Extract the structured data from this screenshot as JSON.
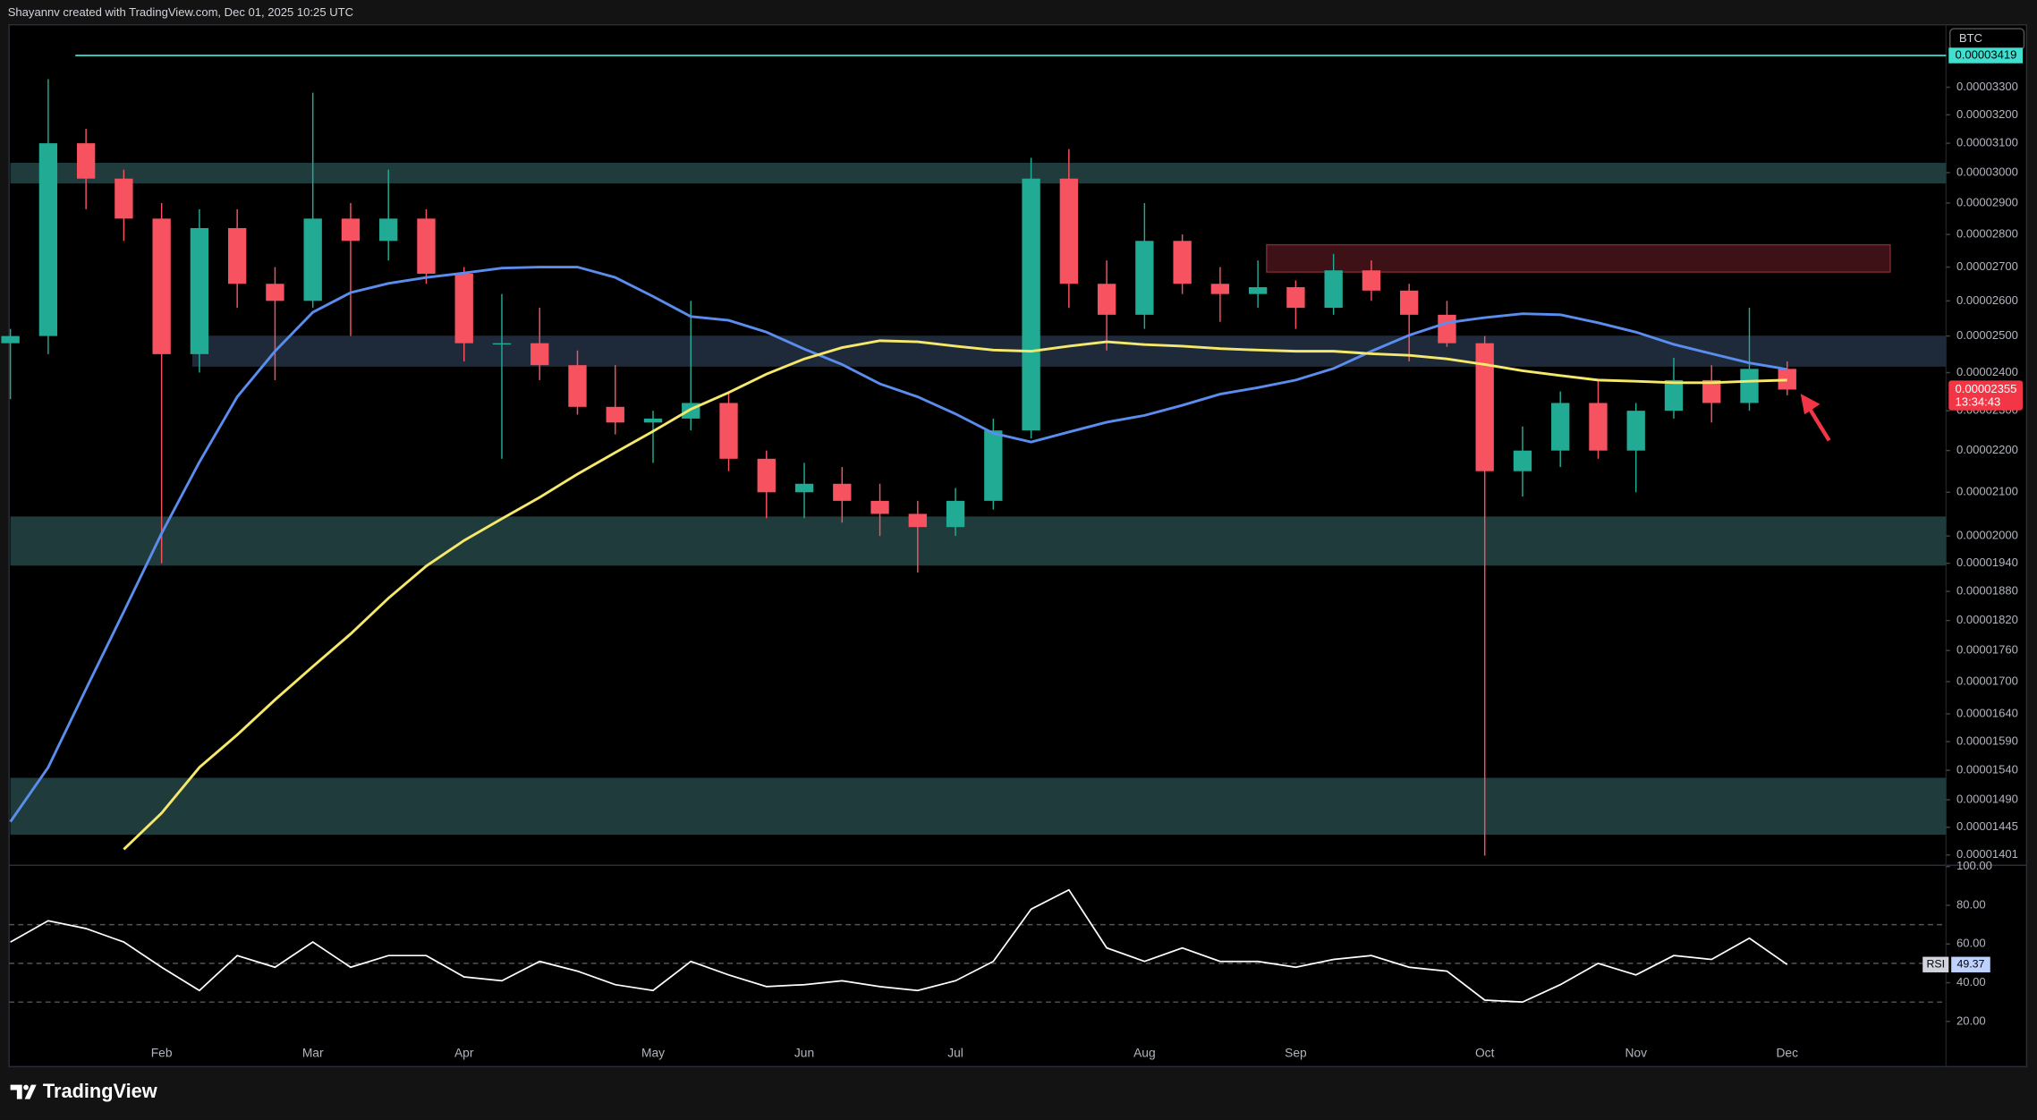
{
  "header": {
    "text": "Shayannv created with TradingView.com, Dec 01, 2025 10:25 UTC"
  },
  "footer": {
    "brand": "TradingView"
  },
  "chart_data": {
    "type": "candlestick",
    "symbol": "BTC",
    "yscale": "log",
    "ylim": [
      1.387e-05,
      3.533e-05
    ],
    "yticks": [
      {
        "value": 3.3e-05,
        "label": "0.00003300"
      },
      {
        "value": 3.2e-05,
        "label": "0.00003200"
      },
      {
        "value": 3.1e-05,
        "label": "0.00003100"
      },
      {
        "value": 3e-05,
        "label": "0.00003000"
      },
      {
        "value": 2.9e-05,
        "label": "0.00002900"
      },
      {
        "value": 2.8e-05,
        "label": "0.00002800"
      },
      {
        "value": 2.7e-05,
        "label": "0.00002700"
      },
      {
        "value": 2.6e-05,
        "label": "0.00002600"
      },
      {
        "value": 2.5e-05,
        "label": "0.00002500"
      },
      {
        "value": 2.4e-05,
        "label": "0.00002400"
      },
      {
        "value": 2.3e-05,
        "label": "0.00002300"
      },
      {
        "value": 2.2e-05,
        "label": "0.00002200"
      },
      {
        "value": 2.1e-05,
        "label": "0.00002100"
      },
      {
        "value": 2e-05,
        "label": "0.00002000"
      },
      {
        "value": 1.94e-05,
        "label": "0.00001940"
      },
      {
        "value": 1.88e-05,
        "label": "0.00001880"
      },
      {
        "value": 1.82e-05,
        "label": "0.00001820"
      },
      {
        "value": 1.76e-05,
        "label": "0.00001760"
      },
      {
        "value": 1.7e-05,
        "label": "0.00001700"
      },
      {
        "value": 1.64e-05,
        "label": "0.00001640"
      },
      {
        "value": 1.59e-05,
        "label": "0.00001590"
      },
      {
        "value": 1.54e-05,
        "label": "0.00001540"
      },
      {
        "value": 1.49e-05,
        "label": "0.00001490"
      },
      1.445e-05,
      1.401e-05
    ],
    "categories": [
      null,
      null,
      null,
      null,
      "Feb",
      null,
      null,
      null,
      "Mar",
      null,
      null,
      null,
      "Apr",
      null,
      null,
      null,
      null,
      "May",
      null,
      null,
      null,
      "Jun",
      null,
      null,
      null,
      "Jul",
      null,
      null,
      null,
      null,
      "Aug",
      null,
      null,
      null,
      "Sep",
      null,
      null,
      null,
      null,
      "Oct",
      null,
      null,
      null,
      "Nov",
      null,
      null,
      null,
      "Dec"
    ],
    "up_color": "#22ab94",
    "down_color": "#f7525f",
    "open": [
      2.48e-05,
      2.5e-05,
      3.1e-05,
      2.98e-05,
      2.85e-05,
      2.45e-05,
      2.82e-05,
      2.65e-05,
      2.6e-05,
      2.85e-05,
      2.78e-05,
      2.85e-05,
      2.68e-05,
      2.48e-05,
      2.48e-05,
      2.42e-05,
      2.31e-05,
      2.27e-05,
      2.28e-05,
      2.32e-05,
      2.18e-05,
      2.1e-05,
      2.12e-05,
      2.08e-05,
      2.05e-05,
      2.02e-05,
      2.08e-05,
      2.25e-05,
      2.98e-05,
      2.65e-05,
      2.56e-05,
      2.78e-05,
      2.65e-05,
      2.62e-05,
      2.64e-05,
      2.58e-05,
      2.69e-05,
      2.63e-05,
      2.56e-05,
      2.48e-05,
      2.15e-05,
      2.2e-05,
      2.32e-05,
      2.2e-05,
      2.3e-05,
      2.38e-05,
      2.32e-05,
      2.41e-05
    ],
    "high": [
      2.52e-05,
      3.33e-05,
      3.15e-05,
      3.01e-05,
      2.9e-05,
      2.88e-05,
      2.88e-05,
      2.7e-05,
      3.28e-05,
      2.9e-05,
      3.01e-05,
      2.88e-05,
      2.7e-05,
      2.62e-05,
      2.58e-05,
      2.46e-05,
      2.42e-05,
      2.3e-05,
      2.6e-05,
      2.35e-05,
      2.2e-05,
      2.17e-05,
      2.16e-05,
      2.12e-05,
      2.08e-05,
      2.11e-05,
      2.28e-05,
      3.05e-05,
      3.08e-05,
      2.72e-05,
      2.9e-05,
      2.8e-05,
      2.7e-05,
      2.72e-05,
      2.66e-05,
      2.74e-05,
      2.72e-05,
      2.65e-05,
      2.6e-05,
      2.5e-05,
      2.26e-05,
      2.35e-05,
      2.38e-05,
      2.32e-05,
      2.44e-05,
      2.42e-05,
      2.58e-05,
      2.43e-05
    ],
    "low": [
      2.33e-05,
      2.45e-05,
      2.88e-05,
      2.78e-05,
      1.94e-05,
      2.4e-05,
      2.58e-05,
      2.38e-05,
      2.58e-05,
      2.5e-05,
      2.72e-05,
      2.65e-05,
      2.43e-05,
      2.18e-05,
      2.38e-05,
      2.29e-05,
      2.24e-05,
      2.17e-05,
      2.25e-05,
      2.15e-05,
      2.04e-05,
      2.04e-05,
      2.03e-05,
      2e-05,
      1.92e-05,
      2e-05,
      2.06e-05,
      2.23e-05,
      2.58e-05,
      2.46e-05,
      2.52e-05,
      2.62e-05,
      2.54e-05,
      2.58e-05,
      2.52e-05,
      2.56e-05,
      2.6e-05,
      2.43e-05,
      2.47e-05,
      1.4e-05,
      2.09e-05,
      2.16e-05,
      2.18e-05,
      2.1e-05,
      2.28e-05,
      2.27e-05,
      2.3e-05,
      2.34e-05
    ],
    "close": [
      2.5e-05,
      3.1e-05,
      2.98e-05,
      2.85e-05,
      2.45e-05,
      2.82e-05,
      2.65e-05,
      2.6e-05,
      2.85e-05,
      2.78e-05,
      2.85e-05,
      2.68e-05,
      2.48e-05,
      2.48e-05,
      2.42e-05,
      2.31e-05,
      2.27e-05,
      2.28e-05,
      2.32e-05,
      2.18e-05,
      2.1e-05,
      2.12e-05,
      2.08e-05,
      2.05e-05,
      2.02e-05,
      2.08e-05,
      2.25e-05,
      2.98e-05,
      2.65e-05,
      2.56e-05,
      2.78e-05,
      2.65e-05,
      2.62e-05,
      2.64e-05,
      2.58e-05,
      2.69e-05,
      2.63e-05,
      2.56e-05,
      2.48e-05,
      2.15e-05,
      2.2e-05,
      2.32e-05,
      2.2e-05,
      2.3e-05,
      2.38e-05,
      2.32e-05,
      2.41e-05,
      2.355e-05
    ],
    "moving_averages": [
      {
        "color": "#5b8def",
        "values": [
          1.454e-05,
          1.545e-05,
          1.686e-05,
          1.838e-05,
          2.006e-05,
          2.172e-05,
          2.336e-05,
          2.458e-05,
          2.567e-05,
          2.624e-05,
          2.651e-05,
          2.669e-05,
          2.682e-05,
          2.697e-05,
          2.7e-05,
          2.7e-05,
          2.669e-05,
          2.613e-05,
          2.555e-05,
          2.544e-05,
          2.511e-05,
          2.464e-05,
          2.422e-05,
          2.37e-05,
          2.336e-05,
          2.292e-05,
          2.243e-05,
          2.221e-05,
          2.246e-05,
          2.271e-05,
          2.288e-05,
          2.314e-05,
          2.343e-05,
          2.36e-05,
          2.38e-05,
          2.411e-05,
          2.458e-05,
          2.502e-05,
          2.537e-05,
          2.552e-05,
          2.563e-05,
          2.56e-05,
          2.537e-05,
          2.511e-05,
          2.477e-05,
          2.451e-05,
          2.426e-05,
          2.409e-05
        ]
      },
      {
        "color": "#f5e86a",
        "values": [
          null,
          null,
          null,
          1.41e-05,
          1.468e-05,
          1.545e-05,
          1.602e-05,
          1.666e-05,
          1.729e-05,
          1.793e-05,
          1.866e-05,
          1.934e-05,
          1.99e-05,
          2.039e-05,
          2.088e-05,
          2.143e-05,
          2.195e-05,
          2.248e-05,
          2.304e-05,
          2.347e-05,
          2.396e-05,
          2.437e-05,
          2.468e-05,
          2.487e-05,
          2.484e-05,
          2.472e-05,
          2.461e-05,
          2.458e-05,
          2.472e-05,
          2.484e-05,
          2.476e-05,
          2.472e-05,
          2.465e-05,
          2.461e-05,
          2.458e-05,
          2.458e-05,
          2.451e-05,
          2.447e-05,
          2.437e-05,
          2.422e-05,
          2.405e-05,
          2.392e-05,
          2.38e-05,
          2.377e-05,
          2.373e-05,
          2.373e-05,
          2.377e-05,
          2.38e-05
        ]
      }
    ],
    "zones": [
      {
        "range": [
          2.964e-05,
          3.033e-05
        ],
        "color": "#1f3b3c"
      },
      {
        "range": [
          2.416e-05,
          2.501e-05
        ],
        "color": "#1e2a3a"
      },
      {
        "range": [
          1.935e-05,
          2.044e-05
        ],
        "color": "#1f3b3c"
      },
      {
        "range": [
          1.433e-05,
          1.527e-05
        ],
        "color": "#1f3b3c"
      },
      {
        "range": [
          2.685e-05,
          2.768e-05
        ],
        "color": "#3d1116",
        "border": "#7a2a30"
      }
    ],
    "level": {
      "value": 3.419e-05,
      "color": "#3fe0d0"
    },
    "last_price": {
      "value": 2.355e-05,
      "countdown": "13:34:43",
      "color": "#f23645"
    },
    "rsi": {
      "name": "RSI",
      "color": "#ffffff",
      "ylim": [
        0,
        100
      ],
      "yticks": [
        {
          "value": 100,
          "label": "100.00"
        },
        {
          "value": 80,
          "label": "80.00"
        },
        {
          "value": 60,
          "label": "60.00"
        },
        {
          "value": 40,
          "label": "40.00"
        },
        {
          "value": 20,
          "label": "20.00"
        }
      ],
      "levels": [
        70,
        50,
        30
      ],
      "values": [
        61,
        72,
        68,
        61,
        48,
        36,
        54,
        48,
        61,
        48,
        54,
        54,
        43,
        41,
        51,
        46,
        39,
        36,
        51,
        44,
        38,
        39,
        41,
        38,
        36,
        41,
        51,
        78,
        88,
        58,
        51,
        58,
        51,
        51,
        48,
        52,
        54,
        48,
        46,
        31,
        30,
        39,
        50,
        44,
        54,
        52,
        63,
        49.37
      ]
    }
  }
}
